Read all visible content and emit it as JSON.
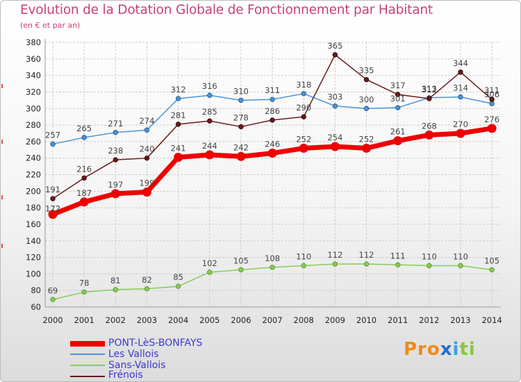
{
  "title": "Evolution de la Dotation Globale de Fonctionnement par Habitant",
  "subtitle": "(en € et par an)",
  "brand": {
    "p1": "Pro",
    "p2": "x",
    "p3": "i",
    "p4": "ti"
  },
  "colors": {
    "pont": "#ee0000",
    "vallois": "#4a94d6",
    "sans": "#88cc55",
    "frenois": "#6a1a1a",
    "grid": "#cccccc",
    "axis_text": "#222222",
    "value_text": "#444444"
  },
  "chart_data": {
    "type": "line",
    "title": "Evolution de la Dotation Globale de Fonctionnement par Habitant",
    "subtitle": "(en € et par an)",
    "xlabel": "",
    "ylabel": "",
    "ylim": [
      60,
      380
    ],
    "yticks": [
      60,
      80,
      100,
      120,
      140,
      160,
      180,
      200,
      220,
      240,
      260,
      280,
      300,
      320,
      340,
      360,
      380
    ],
    "categories": [
      "2000",
      "2001",
      "2002",
      "2003",
      "2004",
      "2005",
      "2006",
      "2007",
      "2008",
      "2009",
      "2010",
      "2011",
      "2012",
      "2013",
      "2014"
    ],
    "series": [
      {
        "key": "pont",
        "name": "PONT-LèS-BONFAYS",
        "values": [
          172,
          187,
          197,
          199,
          241,
          244,
          242,
          246,
          252,
          254,
          252,
          261,
          268,
          270,
          276
        ]
      },
      {
        "key": "vallois",
        "name": "Les Vallois",
        "values": [
          257,
          265,
          271,
          274,
          312,
          316,
          310,
          311,
          318,
          303,
          300,
          301,
          313,
          314,
          306
        ]
      },
      {
        "key": "sans",
        "name": "Sans-Vallois",
        "values": [
          69,
          78,
          81,
          82,
          85,
          102,
          105,
          108,
          110,
          112,
          112,
          111,
          110,
          110,
          105
        ]
      },
      {
        "key": "frenois",
        "name": "Frénois",
        "values": [
          191,
          216,
          238,
          240,
          281,
          285,
          278,
          286,
          290,
          365,
          335,
          317,
          312,
          344,
          311
        ]
      }
    ]
  }
}
